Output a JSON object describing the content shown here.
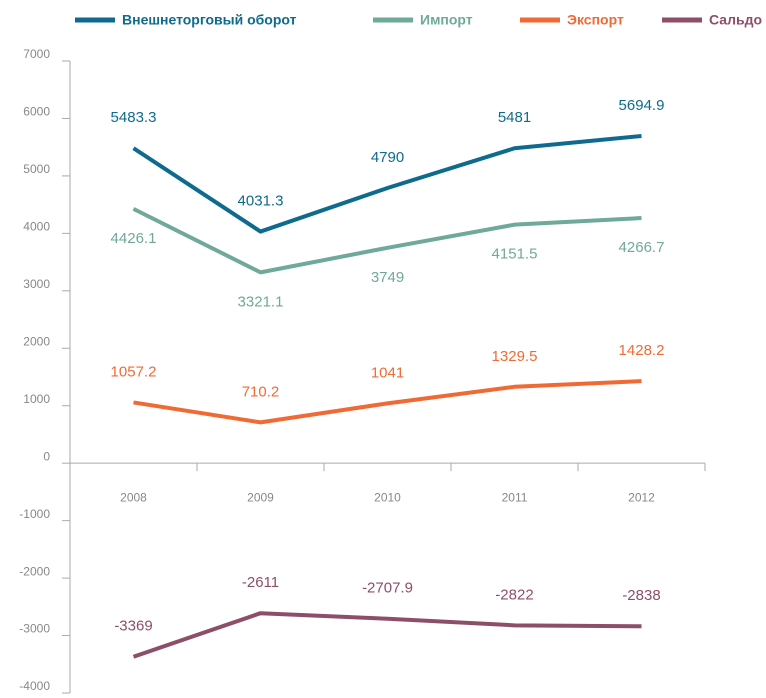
{
  "chart_data": {
    "type": "line",
    "categories": [
      "2008",
      "2009",
      "2010",
      "2011",
      "2012"
    ],
    "series": [
      {
        "name": "Внешнеторговый оборот",
        "color": "#0f6b8e",
        "values": [
          5483.3,
          4031.3,
          4790,
          5481,
          5694.9
        ]
      },
      {
        "name": "Импорт",
        "color": "#6fa99a",
        "values": [
          4426.1,
          3321.1,
          3749,
          4151.5,
          4266.7
        ]
      },
      {
        "name": "Экспорт",
        "color": "#f06a35",
        "values": [
          1057.2,
          710.2,
          1041,
          1329.5,
          1428.2
        ]
      },
      {
        "name": "Сальдо",
        "color": "#8d4e6a",
        "values": [
          -3369,
          -2611,
          -2707.9,
          -2822,
          -2838
        ]
      }
    ],
    "ylim": [
      -4000,
      7000
    ],
    "yticks": [
      -4000,
      -3000,
      -2000,
      -1000,
      0,
      1000,
      2000,
      3000,
      4000,
      5000,
      6000,
      7000
    ],
    "legend": "top"
  }
}
